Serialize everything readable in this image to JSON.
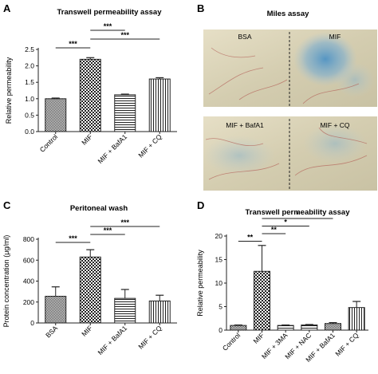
{
  "chart_data": [
    {
      "id": "A",
      "type": "bar",
      "letter": "A",
      "title": "Transwell permeability assay",
      "ylabel": "Relative permeability",
      "xlabel": "",
      "ylim": [
        0,
        2.5
      ],
      "yticks": [
        "0.0",
        "0.5",
        "1.0",
        "1.5",
        "2.0",
        "2.5"
      ],
      "categories": [
        "Control",
        "MIF",
        "MIF + BafA1",
        "MIF + CQ"
      ],
      "values": [
        1.0,
        2.2,
        1.12,
        1.6
      ],
      "errors": [
        0.02,
        0.05,
        0.02,
        0.04
      ],
      "patterns": [
        "dense",
        "checker",
        "hlines",
        "vlines"
      ],
      "significance": [
        {
          "from": 0,
          "to": 1,
          "label": "***"
        },
        {
          "from": 1,
          "to": 3,
          "label": "***"
        },
        {
          "from": 1,
          "to": 2,
          "label": "***"
        }
      ]
    },
    {
      "id": "C",
      "type": "bar",
      "letter": "C",
      "title": "Peritoneal wash",
      "ylabel": "Protein concentration (μg/ml)",
      "xlabel": "",
      "ylim": [
        0,
        800
      ],
      "yticks": [
        "0",
        "200",
        "400",
        "600",
        "800"
      ],
      "categories": [
        "BSA",
        "MIF",
        "MIF + BafA1",
        "MIF + CQ"
      ],
      "values": [
        255,
        630,
        235,
        210
      ],
      "errors": [
        90,
        70,
        85,
        55
      ],
      "patterns": [
        "dense",
        "checker",
        "hlines",
        "vlines"
      ],
      "significance": [
        {
          "from": 0,
          "to": 1,
          "label": "***"
        },
        {
          "from": 1,
          "to": 2,
          "label": "***"
        },
        {
          "from": 1,
          "to": 3,
          "label": "***"
        }
      ]
    },
    {
      "id": "D",
      "type": "bar",
      "letter": "D",
      "title": "Transwell permeability assay",
      "ylabel": "Relative permeability",
      "xlabel": "",
      "ylim": [
        0,
        20
      ],
      "yticks": [
        "0",
        "5",
        "10",
        "15",
        "20"
      ],
      "categories": [
        "Control",
        "MIF",
        "MIF + 3MA",
        "MIF + NAC",
        "MIF + BafA1",
        "MIF + CQ"
      ],
      "values": [
        1.0,
        12.5,
        1.0,
        1.1,
        1.4,
        4.8
      ],
      "errors": [
        0.1,
        5.5,
        0.1,
        0.1,
        0.2,
        1.3
      ],
      "patterns": [
        "dense",
        "checker",
        "hlines",
        "hlines",
        "dense",
        "vlines"
      ],
      "significance": [
        {
          "from": 0,
          "to": 1,
          "label": "**"
        },
        {
          "from": 1,
          "to": 2,
          "label": "**"
        },
        {
          "from": 1,
          "to": 3,
          "label": "*"
        },
        {
          "from": 1,
          "to": 4,
          "label": "*"
        }
      ]
    }
  ],
  "miles": {
    "letter": "B",
    "title": "Miles assay",
    "top": {
      "left_label": "BSA",
      "right_label": "MIF"
    },
    "bottom": {
      "left_label": "MIF + BafA1",
      "right_label": "MIF + CQ"
    }
  },
  "colors": {
    "bar_stroke": "#222222",
    "axis": "#222222",
    "tissue_base": "#d9d3b8",
    "blue_dye": "#5a9ec9"
  }
}
